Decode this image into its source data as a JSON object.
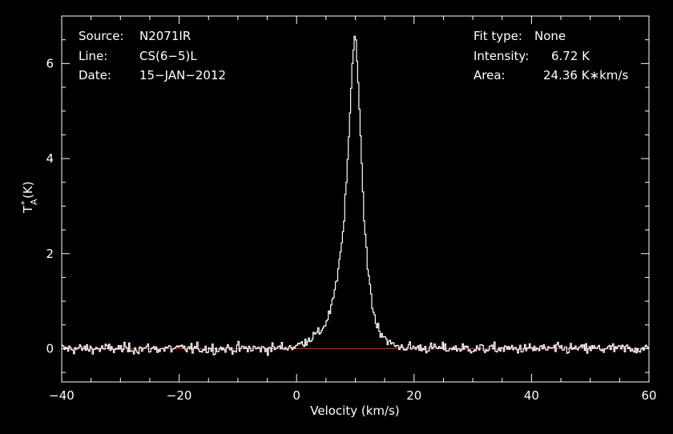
{
  "header": {
    "source_label": "Source:",
    "source_value": "N2071IR",
    "line_label": "Line:",
    "line_value": "CS(6−5)L",
    "date_label": "Date:",
    "date_value": "15−JAN−2012",
    "fit_label": "Fit type:",
    "fit_value": "None",
    "intensity_label": "Intensity:",
    "intensity_value": "6.72 K",
    "area_label": "Area:",
    "area_value": "24.36 K∗km/s"
  },
  "colors": {
    "background": "#000000",
    "spectrum": "#ffffff",
    "baseline": "#d02020",
    "axes": "#ffffff"
  },
  "chart_data": {
    "type": "line",
    "xlabel": "Velocity (km/s)",
    "ylabel_main": "T",
    "ylabel_sup": "*",
    "ylabel_sub": "A",
    "ylabel_unit": " (K)",
    "xlim": [
      -40,
      60
    ],
    "ylim": [
      -0.7,
      7.0
    ],
    "xticks": [
      -40,
      -20,
      0,
      20,
      40,
      60
    ],
    "xtick_labels": [
      "−40",
      "−20",
      "0",
      "20",
      "40",
      "60"
    ],
    "yticks": [
      0,
      2,
      4,
      6
    ],
    "ytick_labels": [
      "0",
      "2",
      "4",
      "6"
    ],
    "baseline_y": 0,
    "noise_rms": 0.1,
    "series": [
      {
        "x": [
          -40,
          -5,
          0,
          2,
          4,
          5,
          6,
          7,
          7.5,
          8,
          8.5,
          9,
          9.5,
          10,
          10.5,
          11,
          11.5,
          12,
          13,
          14,
          15,
          16,
          17,
          20,
          30,
          40,
          60
        ],
        "y": [
          0.0,
          0.0,
          0.05,
          0.2,
          0.35,
          0.55,
          0.9,
          1.5,
          2.1,
          2.5,
          3.5,
          4.7,
          6.0,
          6.72,
          5.6,
          4.2,
          2.7,
          1.9,
          0.8,
          0.4,
          0.25,
          0.1,
          0.05,
          0.02,
          0.0,
          0.0,
          0.0
        ]
      }
    ]
  }
}
